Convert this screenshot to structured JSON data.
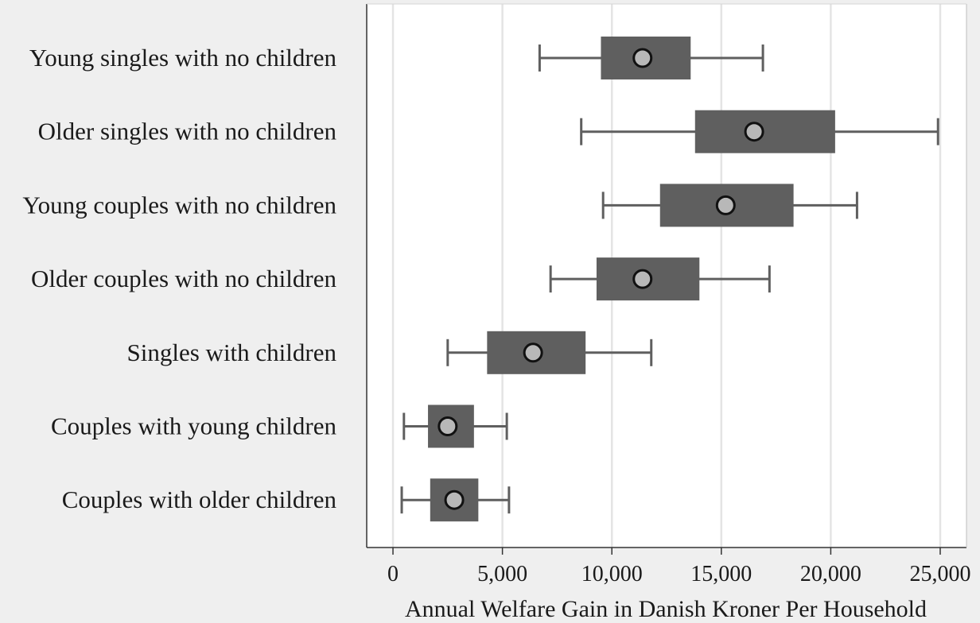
{
  "chart_data": {
    "type": "boxplot",
    "title": "",
    "xlabel": "Annual Welfare Gain in Danish Kroner Per Household",
    "ylabel": "",
    "xlim": [
      -1200,
      26200
    ],
    "x_ticks": [
      0,
      5000,
      10000,
      15000,
      20000,
      25000
    ],
    "x_tick_labels": [
      "0",
      "5,000",
      "10,000",
      "15,000",
      "20,000",
      "25,000"
    ],
    "grid": "vertical",
    "categories": [
      "Young singles with no children",
      "Older singles with no children",
      "Young couples with no children",
      "Older couples with no children",
      "Singles with children",
      "Couples with young children",
      "Couples with older children"
    ],
    "series": [
      {
        "boxes": [
          {
            "whisker_low": 6700,
            "q1": 9500,
            "q3": 13600,
            "whisker_high": 16900,
            "mean": 11400
          },
          {
            "whisker_low": 8600,
            "q1": 13800,
            "q3": 20200,
            "whisker_high": 24900,
            "mean": 16500
          },
          {
            "whisker_low": 9600,
            "q1": 12200,
            "q3": 18300,
            "whisker_high": 21200,
            "mean": 15200
          },
          {
            "whisker_low": 7200,
            "q1": 9300,
            "q3": 14000,
            "whisker_high": 17200,
            "mean": 11400
          },
          {
            "whisker_low": 2500,
            "q1": 4300,
            "q3": 8800,
            "whisker_high": 11800,
            "mean": 6400
          },
          {
            "whisker_low": 500,
            "q1": 1600,
            "q3": 3700,
            "whisker_high": 5200,
            "mean": 2500
          },
          {
            "whisker_low": 400,
            "q1": 1700,
            "q3": 3900,
            "whisker_high": 5300,
            "mean": 2800
          }
        ]
      }
    ],
    "colors": {
      "plot_bg": "#ffffff",
      "page_bg": "#efefef",
      "box": "#5f5f5f",
      "whisker": "#5f5f5f",
      "mean_fill": "#b8b8b8",
      "mean_stroke": "#111111",
      "grid": "#e4e4e4",
      "axis": "#333333"
    }
  }
}
